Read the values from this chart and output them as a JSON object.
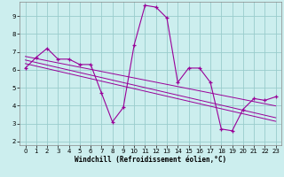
{
  "title": "",
  "xlabel": "Windchill (Refroidissement éolien,°C)",
  "x": [
    0,
    1,
    2,
    3,
    4,
    5,
    6,
    7,
    8,
    9,
    10,
    11,
    12,
    13,
    14,
    15,
    16,
    17,
    18,
    19,
    20,
    21,
    22,
    23
  ],
  "y_main": [
    6.1,
    6.7,
    7.2,
    6.6,
    6.6,
    6.3,
    6.3,
    4.7,
    3.1,
    3.9,
    7.4,
    9.6,
    9.5,
    8.9,
    5.3,
    6.1,
    6.1,
    5.3,
    2.7,
    2.6,
    3.8,
    4.4,
    4.3,
    4.5
  ],
  "y_reg1": [
    6.55,
    6.41,
    6.27,
    6.13,
    5.99,
    5.85,
    5.71,
    5.57,
    5.43,
    5.29,
    5.15,
    5.01,
    4.87,
    4.73,
    4.59,
    4.45,
    4.31,
    4.17,
    4.03,
    3.89,
    3.75,
    3.61,
    3.47,
    3.33
  ],
  "y_reg2": [
    6.75,
    6.63,
    6.51,
    6.39,
    6.27,
    6.15,
    6.03,
    5.91,
    5.79,
    5.67,
    5.55,
    5.43,
    5.31,
    5.19,
    5.07,
    4.95,
    4.83,
    4.71,
    4.59,
    4.47,
    4.35,
    4.23,
    4.11,
    3.99
  ],
  "y_reg3": [
    6.35,
    6.21,
    6.07,
    5.93,
    5.79,
    5.65,
    5.51,
    5.37,
    5.23,
    5.09,
    4.95,
    4.81,
    4.67,
    4.53,
    4.39,
    4.25,
    4.11,
    3.97,
    3.83,
    3.69,
    3.55,
    3.41,
    3.27,
    3.13
  ],
  "line_color": "#990099",
  "bg_color": "#cceeee",
  "grid_color": "#99cccc",
  "xlim": [
    -0.5,
    23.5
  ],
  "ylim": [
    1.8,
    9.8
  ],
  "yticks": [
    2,
    3,
    4,
    5,
    6,
    7,
    8,
    9
  ],
  "xticks": [
    0,
    1,
    2,
    3,
    4,
    5,
    6,
    7,
    8,
    9,
    10,
    11,
    12,
    13,
    14,
    15,
    16,
    17,
    18,
    19,
    20,
    21,
    22,
    23
  ],
  "tick_fontsize": 5.0,
  "xlabel_fontsize": 5.5
}
